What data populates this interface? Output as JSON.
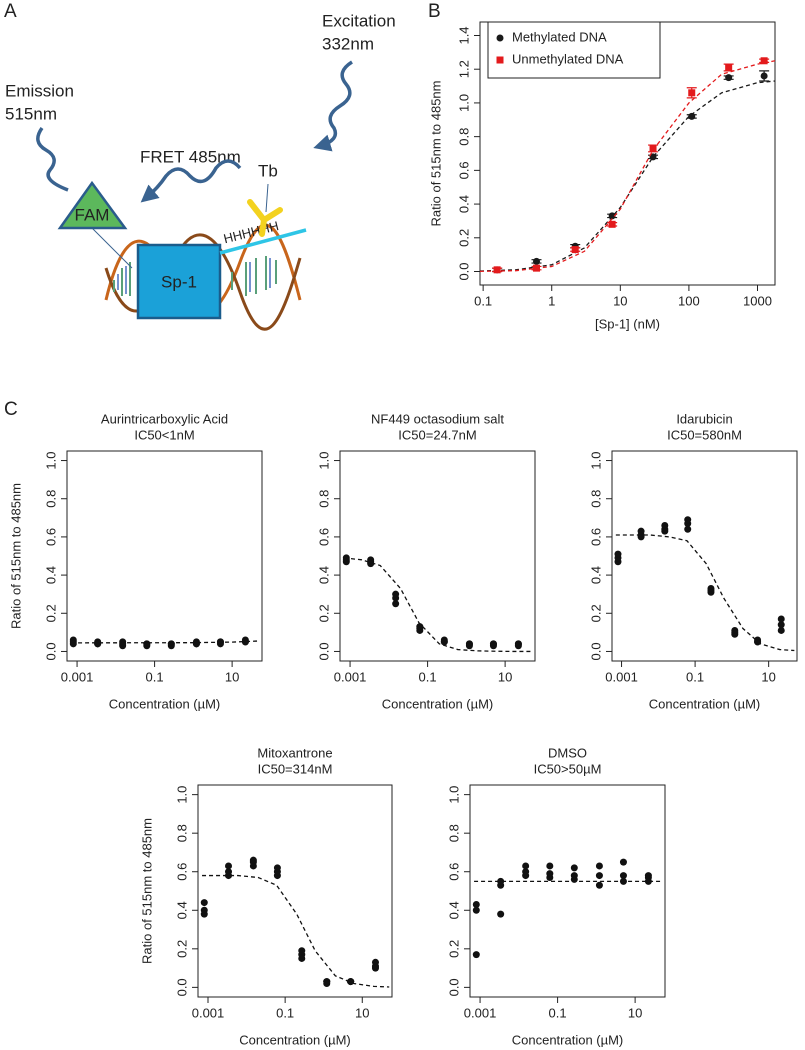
{
  "panels": {
    "labels": [
      "A",
      "B",
      "C"
    ],
    "diagram": {
      "excitation": [
        "Excitation",
        "332nm"
      ],
      "emission": [
        "Emission",
        "515nm"
      ],
      "fret": "FRET 485nm",
      "donor": "Tb",
      "acceptor": "FAM",
      "his_tag": "HHHHHH",
      "protein": "Sp-1"
    }
  },
  "chart_data": [
    {
      "type": "scatter",
      "x": [
        0.16,
        0.6,
        2.2,
        7.6,
        30,
        110,
        380,
        1250
      ],
      "xlim": [
        0.09,
        1800
      ],
      "xlog": true,
      "xticks": [
        0.1,
        1,
        10,
        100,
        1000
      ],
      "ylim": [
        -0.08,
        1.48
      ],
      "yticks": [
        {
          "value": 0,
          "label": "0.0"
        },
        0.2,
        0.4,
        0.6,
        0.8,
        {
          "value": 1,
          "label": "1.0"
        },
        1.2,
        1.4
      ],
      "xlabel": "[Sp-1] (nM)",
      "ylabel": "Ratio of 515nm to 485nm",
      "legend": "top-left",
      "series": [
        {
          "name": "Methylated DNA",
          "color": "#1a1a1a",
          "marker": "circle",
          "values": [
            0.01,
            0.06,
            0.15,
            0.33,
            0.68,
            0.92,
            1.15,
            1.16
          ],
          "errors": [
            0.01,
            0.01,
            0.01,
            0.01,
            0.01,
            0.01,
            0.01,
            0.03
          ],
          "fit": {
            "x": [
              0.09,
              0.3,
              1,
              3,
              10,
              30,
              100,
              300,
              1000,
              1800
            ],
            "values": [
              0.003,
              0.01,
              0.04,
              0.14,
              0.38,
              0.68,
              0.92,
              1.06,
              1.12,
              1.13
            ]
          }
        },
        {
          "name": "Unmethylated DNA",
          "color": "#e31a1c",
          "marker": "square",
          "values": [
            0.01,
            0.02,
            0.13,
            0.28,
            0.73,
            1.06,
            1.21,
            1.25
          ],
          "errors": [
            0.01,
            0.01,
            0.01,
            0.01,
            0.02,
            0.03,
            0.02,
            0.01
          ],
          "fit": {
            "x": [
              0.09,
              0.3,
              1,
              3,
              10,
              30,
              100,
              300,
              1000,
              1800
            ],
            "values": [
              0.001,
              0.005,
              0.03,
              0.12,
              0.37,
              0.72,
              1.0,
              1.17,
              1.23,
              1.25
            ]
          }
        }
      ]
    },
    {
      "type": "scatter",
      "title": "Aurintricarboxylic Acid",
      "subtitle": "IC50<1nM",
      "color": "#111111",
      "x": [
        0.0008,
        0.0008,
        0.0008,
        0.0034,
        0.0034,
        0.0034,
        0.015,
        0.015,
        0.015,
        0.063,
        0.063,
        0.063,
        0.27,
        0.27,
        0.27,
        1.2,
        1.2,
        1.2,
        5,
        5,
        5,
        22,
        22,
        22
      ],
      "values": [
        0.05,
        0.06,
        0.04,
        0.04,
        0.05,
        0.04,
        0.04,
        0.05,
        0.03,
        0.04,
        0.04,
        0.03,
        0.03,
        0.04,
        0.04,
        0.04,
        0.05,
        0.04,
        0.05,
        0.04,
        0.05,
        0.06,
        0.05,
        0.05
      ],
      "fit": {
        "x": [
          0.0007,
          1,
          10,
          50
        ],
        "values": [
          0.045,
          0.046,
          0.049,
          0.055
        ]
      },
      "xlim": [
        0.00055,
        59
      ],
      "xlog": true,
      "xticks": [
        0.001,
        0.1,
        10
      ],
      "ylim": [
        -0.05,
        1.05
      ],
      "yticks": [
        {
          "value": 0,
          "label": "0.0"
        },
        0.2,
        0.4,
        0.6,
        0.8,
        {
          "value": 1,
          "label": "1.0"
        }
      ],
      "xlabel": "Concentration (µM)",
      "ylabel": "Ratio of 515nm to 485nm"
    },
    {
      "type": "scatter",
      "title": "NF449 octasodium salt",
      "subtitle": "IC50=24.7nM",
      "color": "#111111",
      "x": [
        0.0008,
        0.0008,
        0.0008,
        0.0034,
        0.0034,
        0.0034,
        0.015,
        0.015,
        0.015,
        0.063,
        0.063,
        0.063,
        0.27,
        0.27,
        0.27,
        1.2,
        1.2,
        1.2,
        5,
        5,
        5,
        22,
        22,
        22
      ],
      "values": [
        0.47,
        0.49,
        0.48,
        0.47,
        0.48,
        0.46,
        0.25,
        0.28,
        0.3,
        0.11,
        0.12,
        0.13,
        0.05,
        0.06,
        0.05,
        0.04,
        0.04,
        0.03,
        0.04,
        0.04,
        0.03,
        0.04,
        0.04,
        0.03
      ],
      "fit": {
        "x": [
          0.0007,
          0.002,
          0.006,
          0.02,
          0.06,
          0.2,
          0.6,
          2,
          6,
          20,
          50
        ],
        "values": [
          0.49,
          0.48,
          0.45,
          0.33,
          0.15,
          0.04,
          0.01,
          0.003,
          0.001,
          0,
          0
        ]
      },
      "xlim": [
        0.00055,
        59
      ],
      "xlog": true,
      "xticks": [
        0.001,
        0.1,
        10
      ],
      "ylim": [
        -0.05,
        1.05
      ],
      "yticks": [
        {
          "value": 0,
          "label": "0.0"
        },
        0.2,
        0.4,
        0.6,
        0.8,
        {
          "value": 1,
          "label": "1.0"
        }
      ],
      "xlabel": "Concentration (µM)"
    },
    {
      "type": "scatter",
      "title": "Idarubicin",
      "subtitle": "IC50=580nM",
      "color": "#111111",
      "x": [
        0.0008,
        0.0008,
        0.0008,
        0.0034,
        0.0034,
        0.0034,
        0.015,
        0.015,
        0.015,
        0.063,
        0.063,
        0.063,
        0.27,
        0.27,
        0.27,
        1.2,
        1.2,
        1.2,
        5,
        5,
        5,
        22,
        22,
        22
      ],
      "values": [
        0.47,
        0.49,
        0.51,
        0.6,
        0.61,
        0.63,
        0.63,
        0.64,
        0.66,
        0.64,
        0.67,
        0.69,
        0.31,
        0.32,
        0.33,
        0.09,
        0.1,
        0.11,
        0.05,
        0.05,
        0.06,
        0.11,
        0.14,
        0.17
      ],
      "fit": {
        "x": [
          0.0007,
          0.002,
          0.006,
          0.02,
          0.06,
          0.2,
          0.6,
          2,
          6,
          20,
          50
        ],
        "values": [
          0.61,
          0.61,
          0.61,
          0.6,
          0.58,
          0.46,
          0.28,
          0.12,
          0.04,
          0.01,
          0.005
        ]
      },
      "xlim": [
        0.00055,
        59
      ],
      "xlog": true,
      "xticks": [
        0.001,
        0.1,
        10
      ],
      "ylim": [
        -0.05,
        1.05
      ],
      "yticks": [
        {
          "value": 0,
          "label": "0.0"
        },
        0.2,
        0.4,
        0.6,
        0.8,
        {
          "value": 1,
          "label": "1.0"
        }
      ],
      "xlabel": "Concentration (µM)"
    },
    {
      "type": "scatter",
      "title": "Mitoxantrone",
      "subtitle": "IC50=314nM",
      "color": "#111111",
      "x": [
        0.0008,
        0.0008,
        0.0008,
        0.0034,
        0.0034,
        0.0034,
        0.015,
        0.015,
        0.015,
        0.063,
        0.063,
        0.063,
        0.27,
        0.27,
        0.27,
        1.2,
        1.2,
        1.2,
        5,
        5,
        5,
        22,
        22,
        22
      ],
      "values": [
        0.38,
        0.4,
        0.44,
        0.58,
        0.6,
        0.63,
        0.63,
        0.65,
        0.66,
        0.58,
        0.6,
        0.62,
        0.15,
        0.17,
        0.19,
        0.02,
        0.03,
        0.03,
        0.03,
        0.03,
        0.03,
        0.1,
        0.11,
        0.13
      ],
      "fit": {
        "x": [
          0.0007,
          0.002,
          0.006,
          0.02,
          0.06,
          0.2,
          0.6,
          2,
          6,
          20,
          50
        ],
        "values": [
          0.58,
          0.58,
          0.58,
          0.57,
          0.53,
          0.38,
          0.19,
          0.06,
          0.02,
          0.005,
          0.002
        ]
      },
      "xlim": [
        0.00055,
        59
      ],
      "xlog": true,
      "xticks": [
        0.001,
        0.1,
        10
      ],
      "ylim": [
        -0.05,
        1.05
      ],
      "yticks": [
        {
          "value": 0,
          "label": "0.0"
        },
        0.2,
        0.4,
        0.6,
        0.8,
        {
          "value": 1,
          "label": "1.0"
        }
      ],
      "xlabel": "Concentration (µM)",
      "ylabel": "Ratio of 515nm to 485nm"
    },
    {
      "type": "scatter",
      "title": "DMSO",
      "subtitle": "IC50>50µM",
      "color": "#111111",
      "x": [
        0.0008,
        0.0008,
        0.0008,
        0.0034,
        0.0034,
        0.0034,
        0.015,
        0.015,
        0.015,
        0.063,
        0.063,
        0.063,
        0.27,
        0.27,
        0.27,
        1.2,
        1.2,
        1.2,
        5,
        5,
        5,
        22,
        22,
        22
      ],
      "values": [
        0.17,
        0.4,
        0.43,
        0.38,
        0.53,
        0.55,
        0.58,
        0.6,
        0.63,
        0.57,
        0.59,
        0.63,
        0.56,
        0.58,
        0.62,
        0.53,
        0.58,
        0.63,
        0.55,
        0.58,
        0.65,
        0.55,
        0.57,
        0.58
      ],
      "fit": {
        "x": [
          0.0007,
          50
        ],
        "values": [
          0.55,
          0.55
        ]
      },
      "xlim": [
        0.00055,
        59
      ],
      "xlog": true,
      "xticks": [
        0.001,
        0.1,
        10
      ],
      "ylim": [
        -0.05,
        1.05
      ],
      "yticks": [
        {
          "value": 0,
          "label": "0.0"
        },
        0.2,
        0.4,
        0.6,
        0.8,
        {
          "value": 1,
          "label": "1.0"
        }
      ],
      "xlabel": "Concentration (µM)"
    }
  ]
}
